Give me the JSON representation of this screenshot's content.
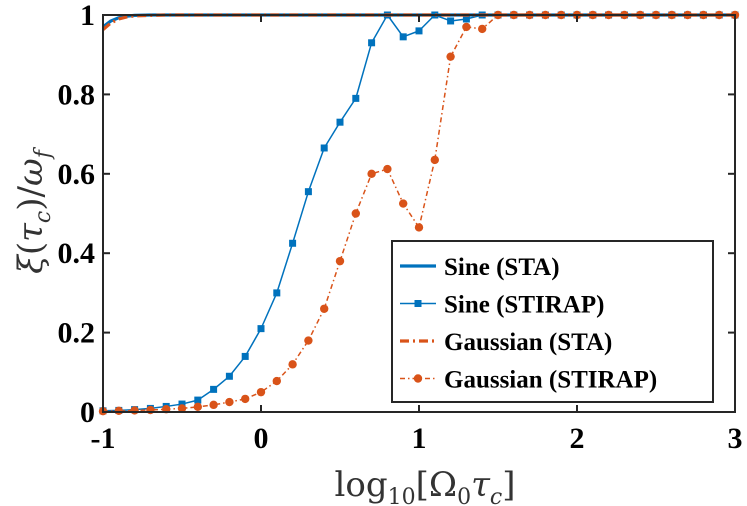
{
  "chart_data": {
    "type": "line",
    "title": "",
    "xlabel": "log10[Ω0τc]",
    "ylabel": "ξ(τc)/ωf",
    "xlim": [
      -1,
      3
    ],
    "ylim": [
      0,
      1
    ],
    "xticks": [
      "-1",
      "0",
      "1",
      "2",
      "3"
    ],
    "yticks": [
      "0",
      "0.2",
      "0.4",
      "0.6",
      "0.8",
      "1"
    ],
    "colors": {
      "sine": "#0072BD",
      "gaussian": "#D95319"
    },
    "legend_position": "bottom-right",
    "series": [
      {
        "name": "Sine (STA)",
        "style": "solid",
        "marker": "none",
        "x": [
          -1,
          -0.95,
          -0.9,
          -0.85,
          -0.8,
          -0.7,
          -0.5,
          0,
          1,
          2,
          3
        ],
        "y": [
          0.97,
          0.985,
          0.993,
          0.997,
          0.999,
          1,
          1,
          1,
          1,
          1,
          1
        ]
      },
      {
        "name": "Sine (STIRAP)",
        "style": "solid",
        "marker": "square",
        "x": [
          -1,
          -0.9,
          -0.8,
          -0.7,
          -0.6,
          -0.5,
          -0.4,
          -0.3,
          -0.2,
          -0.1,
          0,
          0.1,
          0.2,
          0.3,
          0.4,
          0.5,
          0.6,
          0.7,
          0.8,
          0.9,
          1.0,
          1.1,
          1.2,
          1.3,
          1.4,
          1.5,
          1.6,
          1.7,
          1.8,
          1.9,
          2.0,
          2.1,
          2.2,
          2.3,
          2.4,
          2.5,
          2.6,
          2.7,
          2.8,
          2.9,
          3.0
        ],
        "y": [
          0.003,
          0.004,
          0.006,
          0.009,
          0.014,
          0.02,
          0.03,
          0.057,
          0.09,
          0.14,
          0.21,
          0.3,
          0.425,
          0.555,
          0.665,
          0.73,
          0.79,
          0.93,
          1.0,
          0.945,
          0.96,
          1.0,
          0.985,
          0.99,
          1.0,
          1.0,
          1.0,
          1.0,
          1.0,
          1.0,
          1.0,
          1.0,
          1.0,
          1.0,
          1.0,
          1.0,
          1.0,
          1.0,
          1.0,
          1.0,
          1.0
        ]
      },
      {
        "name": "Gaussian (STA)",
        "style": "dashdot",
        "marker": "none",
        "x": [
          -1,
          -0.95,
          -0.9,
          -0.85,
          -0.8,
          -0.7,
          -0.6,
          0,
          1,
          2,
          3
        ],
        "y": [
          0.963,
          0.98,
          0.99,
          0.995,
          0.998,
          0.999,
          1,
          1,
          1,
          1,
          1
        ]
      },
      {
        "name": "Gaussian (STIRAP)",
        "style": "dashdot",
        "marker": "circle",
        "x": [
          -1,
          -0.9,
          -0.8,
          -0.7,
          -0.6,
          -0.5,
          -0.4,
          -0.3,
          -0.2,
          -0.1,
          0,
          0.1,
          0.2,
          0.3,
          0.4,
          0.5,
          0.6,
          0.7,
          0.8,
          0.9,
          1.0,
          1.1,
          1.2,
          1.3,
          1.4,
          1.5,
          1.6,
          1.7,
          1.8,
          1.9,
          2.0,
          2.1,
          2.2,
          2.3,
          2.4,
          2.5,
          2.6,
          2.7,
          2.8,
          2.9,
          3.0
        ],
        "y": [
          0.002,
          0.003,
          0.004,
          0.005,
          0.007,
          0.009,
          0.013,
          0.018,
          0.025,
          0.033,
          0.05,
          0.078,
          0.12,
          0.18,
          0.26,
          0.38,
          0.5,
          0.6,
          0.612,
          0.525,
          0.465,
          0.635,
          0.895,
          0.97,
          0.965,
          1.0,
          1.0,
          1.0,
          1.0,
          1.0,
          1.0,
          1.0,
          1.0,
          1.0,
          1.0,
          1.0,
          1.0,
          1.0,
          1.0,
          1.0,
          1.0
        ]
      }
    ]
  }
}
